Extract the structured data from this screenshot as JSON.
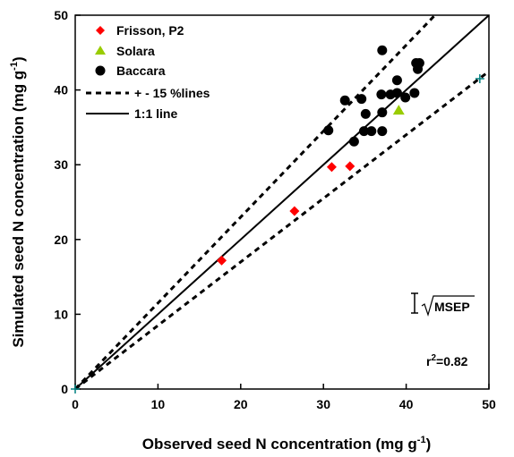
{
  "chart_data": {
    "type": "scatter",
    "xlabel": "Observed seed N concentration (mg g-1)",
    "ylabel": "Simulated seed N concentration (mg g-1)",
    "xlabel_parts": {
      "main": "Observed seed N concentration (mg g",
      "sup": "-1",
      "end": ")"
    },
    "ylabel_parts": {
      "main": "Simulated seed N concentration (mg g",
      "sup": "-1",
      "end": ")"
    },
    "xlim": [
      0,
      50
    ],
    "ylim": [
      0,
      50
    ],
    "x_ticks": [
      0,
      10,
      20,
      30,
      40,
      50
    ],
    "y_ticks": [
      0,
      10,
      20,
      30,
      40,
      50
    ],
    "x_tick_labels": [
      "0",
      "10",
      "20",
      "30",
      "40",
      "50"
    ],
    "y_tick_labels": [
      "0",
      "10",
      "20",
      "30",
      "40",
      "50"
    ],
    "grid": false,
    "legend_position": "top-left",
    "series": [
      {
        "name": "Frisson, P2",
        "marker": "diamond",
        "color": "#ff0000",
        "points": [
          [
            17.7,
            17.2
          ],
          [
            26.5,
            23.8
          ],
          [
            31.0,
            29.7
          ],
          [
            33.2,
            29.8
          ]
        ]
      },
      {
        "name": "Solara",
        "marker": "triangle",
        "color": "#99cc00",
        "points": [
          [
            39.1,
            37.3
          ]
        ]
      },
      {
        "name": "Baccara",
        "marker": "circle",
        "color": "#000000",
        "points": [
          [
            37.1,
            45.3
          ],
          [
            38.9,
            41.3
          ],
          [
            41.2,
            43.6
          ],
          [
            41.6,
            43.6
          ],
          [
            41.4,
            42.8
          ],
          [
            30.6,
            34.6
          ],
          [
            33.7,
            33.1
          ],
          [
            32.6,
            38.6
          ],
          [
            34.6,
            38.8
          ],
          [
            35.1,
            36.8
          ],
          [
            34.9,
            34.5
          ],
          [
            35.8,
            34.5
          ],
          [
            37.1,
            34.5
          ],
          [
            37.1,
            37.0
          ],
          [
            37.0,
            39.4
          ],
          [
            38.1,
            39.4
          ],
          [
            38.9,
            39.6
          ],
          [
            39.9,
            39.0
          ],
          [
            41.0,
            39.6
          ]
        ]
      }
    ],
    "lines": [
      {
        "name": "+ - 15 %lines",
        "style": "dashed",
        "slopes": [
          1.15,
          0.85
        ]
      },
      {
        "name": "1:1 line",
        "style": "solid",
        "slope": 1
      }
    ],
    "extra_markers": [
      {
        "marker": "plus",
        "color": "#008080",
        "points": [
          [
            0,
            0
          ],
          [
            48.9,
            41.5
          ]
        ]
      }
    ],
    "annotations": {
      "msep_label": "MSEP",
      "r2_prefix": "r",
      "r2_sup": "2",
      "r2_value": "=0.82"
    }
  }
}
